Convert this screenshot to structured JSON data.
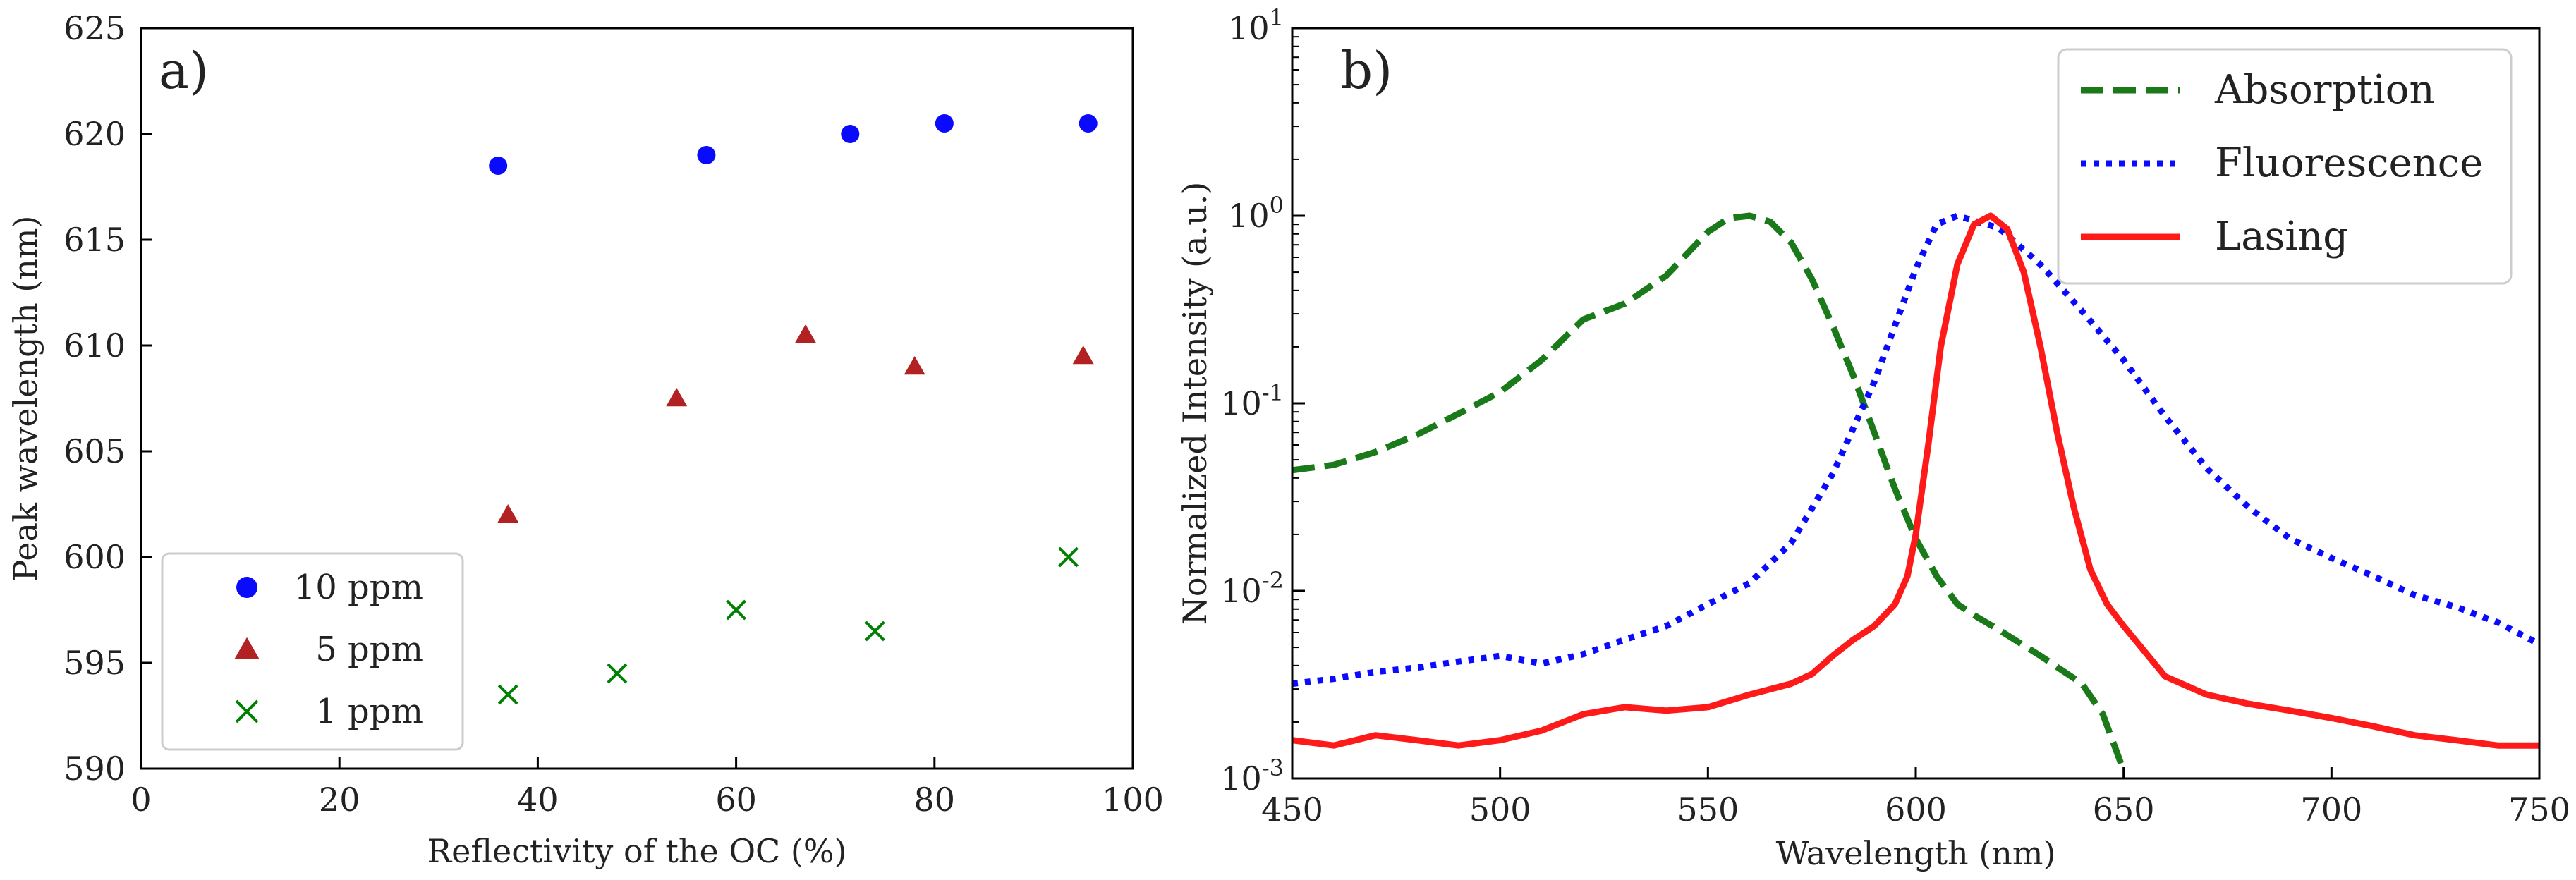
{
  "chart_data": [
    {
      "type": "scatter",
      "panel_label": "a)",
      "xlabel": "Reflectivity of the OC (%)",
      "ylabel": "Peak wavelength (nm)",
      "xlim": [
        0,
        100
      ],
      "ylim": [
        590,
        625
      ],
      "xticks": [
        0,
        20,
        40,
        60,
        80,
        100
      ],
      "yticks": [
        590,
        595,
        600,
        605,
        610,
        615,
        620,
        625
      ],
      "legend_position": "lower-left",
      "series": [
        {
          "name": "10 ppm",
          "marker": "circle",
          "color": "#0a0aff",
          "x": [
            36,
            57,
            71.5,
            81,
            95.5
          ],
          "y": [
            618.5,
            619,
            620,
            620.5,
            620.5
          ]
        },
        {
          "name": "5 ppm",
          "marker": "triangle",
          "color": "#b22222",
          "x": [
            37,
            54,
            67,
            78,
            95
          ],
          "y": [
            602,
            607.5,
            610.5,
            609,
            609.5
          ]
        },
        {
          "name": "1 ppm",
          "marker": "x",
          "color": "#008000",
          "x": [
            37,
            48,
            60,
            74,
            93.5
          ],
          "y": [
            593.5,
            594.5,
            597.5,
            596.5,
            600
          ]
        }
      ]
    },
    {
      "type": "line",
      "panel_label": "b)",
      "xlabel": "Wavelength (nm)",
      "ylabel": "Normalized Intensity (a.u.)",
      "xlim": [
        450,
        750
      ],
      "ylim": [
        0.001,
        10
      ],
      "yscale": "log",
      "xticks": [
        450,
        500,
        550,
        600,
        650,
        700,
        750
      ],
      "yticks": [
        0.001,
        0.01,
        0.1,
        1,
        10
      ],
      "ytick_labels": [
        {
          "base": "10",
          "exp": "-3"
        },
        {
          "base": "10",
          "exp": "-2"
        },
        {
          "base": "10",
          "exp": "-1"
        },
        {
          "base": "10",
          "exp": "0"
        },
        {
          "base": "10",
          "exp": "1"
        }
      ],
      "legend_position": "top-right",
      "series": [
        {
          "name": "Absorption",
          "style": "dashed",
          "color": "#1a7a1a",
          "x": [
            450,
            460,
            470,
            480,
            490,
            500,
            510,
            520,
            530,
            540,
            550,
            555,
            560,
            565,
            570,
            575,
            580,
            585,
            590,
            595,
            600,
            605,
            610,
            615,
            620,
            630,
            640,
            645,
            650
          ],
          "y": [
            0.044,
            0.047,
            0.055,
            0.068,
            0.088,
            0.115,
            0.17,
            0.28,
            0.34,
            0.48,
            0.82,
            0.97,
            1.0,
            0.93,
            0.72,
            0.46,
            0.26,
            0.14,
            0.07,
            0.035,
            0.019,
            0.012,
            0.0085,
            0.0072,
            0.0062,
            0.0045,
            0.0032,
            0.0022,
            0.0011
          ]
        },
        {
          "name": "Fluorescence",
          "style": "dotted",
          "color": "#0a0aff",
          "x": [
            450,
            460,
            470,
            480,
            490,
            500,
            510,
            520,
            530,
            540,
            550,
            560,
            570,
            580,
            590,
            600,
            605,
            610,
            620,
            630,
            640,
            650,
            660,
            670,
            680,
            690,
            700,
            710,
            720,
            730,
            740,
            750
          ],
          "y": [
            0.0032,
            0.0034,
            0.0037,
            0.0039,
            0.0042,
            0.0045,
            0.0041,
            0.0046,
            0.0055,
            0.0065,
            0.0085,
            0.011,
            0.018,
            0.042,
            0.13,
            0.52,
            0.9,
            1.0,
            0.86,
            0.55,
            0.31,
            0.17,
            0.085,
            0.045,
            0.028,
            0.019,
            0.015,
            0.012,
            0.0095,
            0.0082,
            0.0068,
            0.0052
          ]
        },
        {
          "name": "Lasing",
          "style": "solid",
          "color": "#ff1a1a",
          "x": [
            450,
            460,
            470,
            480,
            490,
            500,
            510,
            520,
            530,
            540,
            550,
            560,
            570,
            575,
            580,
            585,
            590,
            595,
            598,
            600,
            603,
            606,
            610,
            614,
            618,
            622,
            626,
            630,
            634,
            638,
            642,
            646,
            650,
            660,
            670,
            680,
            690,
            700,
            710,
            720,
            730,
            740,
            750
          ],
          "y": [
            0.0016,
            0.0015,
            0.0017,
            0.0016,
            0.0015,
            0.0016,
            0.0018,
            0.0022,
            0.0024,
            0.0023,
            0.0024,
            0.0028,
            0.0032,
            0.0036,
            0.0045,
            0.0055,
            0.0065,
            0.0085,
            0.012,
            0.02,
            0.06,
            0.2,
            0.55,
            0.9,
            1.0,
            0.85,
            0.5,
            0.2,
            0.07,
            0.028,
            0.013,
            0.0085,
            0.0065,
            0.0035,
            0.0028,
            0.0025,
            0.0023,
            0.0021,
            0.0019,
            0.0017,
            0.0016,
            0.0015,
            0.0015
          ]
        }
      ]
    }
  ]
}
